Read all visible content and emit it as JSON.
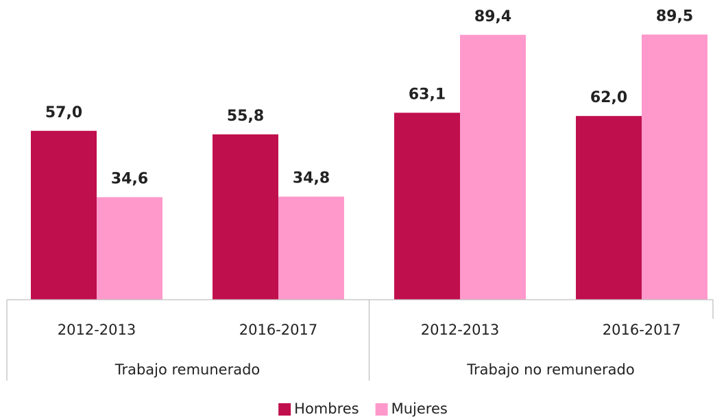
{
  "chart_data": {
    "type": "bar",
    "groups": [
      {
        "name": "Trabajo remunerado",
        "categories": [
          "2012-2013",
          "2016-2017"
        ]
      },
      {
        "name": "Trabajo no remunerado",
        "categories": [
          "2012-2013",
          "2016-2017"
        ]
      }
    ],
    "series": [
      {
        "name": "Hombres",
        "color": "#c00f4d",
        "values": [
          57.0,
          55.8,
          63.1,
          62.0
        ],
        "value_labels": [
          "57,0",
          "55,8",
          "63,1",
          "62,0"
        ]
      },
      {
        "name": "Mujeres",
        "color": "#ff99cc",
        "values": [
          34.6,
          34.8,
          89.4,
          89.5
        ],
        "value_labels": [
          "34,6",
          "34,8",
          "89,4",
          "89,5"
        ]
      }
    ],
    "ylim": [
      0,
      100
    ],
    "legend": "bottom"
  }
}
